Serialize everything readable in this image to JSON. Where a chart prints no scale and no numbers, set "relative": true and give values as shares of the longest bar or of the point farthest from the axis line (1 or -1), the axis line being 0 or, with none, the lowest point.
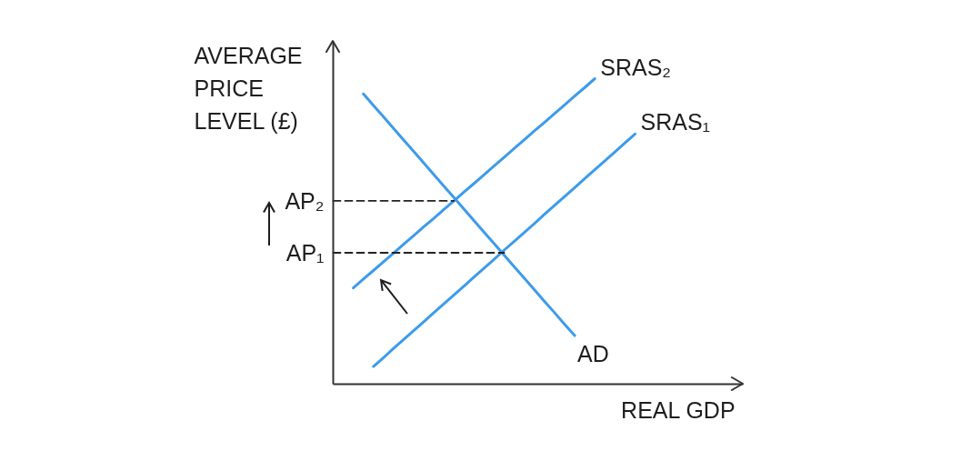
{
  "chart_data": {
    "type": "line",
    "relative": true,
    "xlabel": "REAL GDP",
    "ylabel": "AVERAGE PRICE LEVEL (£)",
    "line_style": "solid",
    "categories": [
      null,
      null,
      null,
      null,
      null,
      null,
      null,
      null,
      null,
      null,
      null,
      null,
      null,
      null,
      null,
      null,
      null,
      null,
      null,
      null,
      null,
      null,
      null,
      null,
      null,
      null,
      null,
      null,
      null,
      null,
      null
    ],
    "series": [
      {
        "name": "SRAS₂",
        "color": "#3d9be9",
        "values": [
          null,
          null,
          0.315,
          0.344,
          0.372,
          0.401,
          0.429,
          0.458,
          0.486,
          0.515,
          0.543,
          0.572,
          0.6,
          0.629,
          0.657,
          0.686,
          0.715,
          0.743,
          0.772,
          0.8,
          0.829,
          0.857,
          0.886,
          0.914,
          0.943,
          0.971,
          1,
          null,
          null,
          null,
          null
        ]
      },
      {
        "name": "SRAS₁",
        "color": "#3d9be9",
        "values": [
          null,
          null,
          null,
          null,
          0.058,
          0.087,
          0.117,
          0.146,
          0.175,
          0.204,
          0.234,
          0.263,
          0.292,
          0.321,
          0.351,
          0.38,
          0.409,
          0.439,
          0.468,
          0.497,
          0.526,
          0.556,
          0.585,
          0.614,
          0.643,
          0.673,
          0.702,
          0.731,
          0.76,
          0.79,
          0.819
        ]
      },
      {
        "name": "AD",
        "color": "#3d9be9",
        "values": [
          null,
          null,
          null,
          0.95,
          0.912,
          0.875,
          0.837,
          0.799,
          0.762,
          0.724,
          0.686,
          0.648,
          0.611,
          0.573,
          0.535,
          0.497,
          0.46,
          0.422,
          0.384,
          0.347,
          0.309,
          0.271,
          0.234,
          0.196,
          0.159,
          null,
          null,
          null,
          null,
          null,
          null
        ]
      },
      {
        "name": "AP₂",
        "color": "#222222",
        "line_style": "dashed",
        "values": [
          0.6,
          0.6,
          0.6,
          0.6,
          0.6,
          0.6,
          0.6,
          0.6,
          0.6,
          0.6,
          0.6,
          0.6,
          0.6,
          null,
          null,
          null,
          null,
          null,
          null,
          null,
          null,
          null,
          null,
          null,
          null,
          null,
          null,
          null,
          null,
          null,
          null
        ]
      },
      {
        "name": "AP₁",
        "color": "#222222",
        "line_style": "dashed",
        "values": [
          0.43,
          0.43,
          0.43,
          0.43,
          0.43,
          0.43,
          0.43,
          0.43,
          0.43,
          0.43,
          0.43,
          0.43,
          0.43,
          0.43,
          0.43,
          0.43,
          0.43,
          0.43,
          null,
          null,
          null,
          null,
          null,
          null,
          null,
          null,
          null,
          null,
          null,
          null,
          null
        ]
      }
    ]
  }
}
